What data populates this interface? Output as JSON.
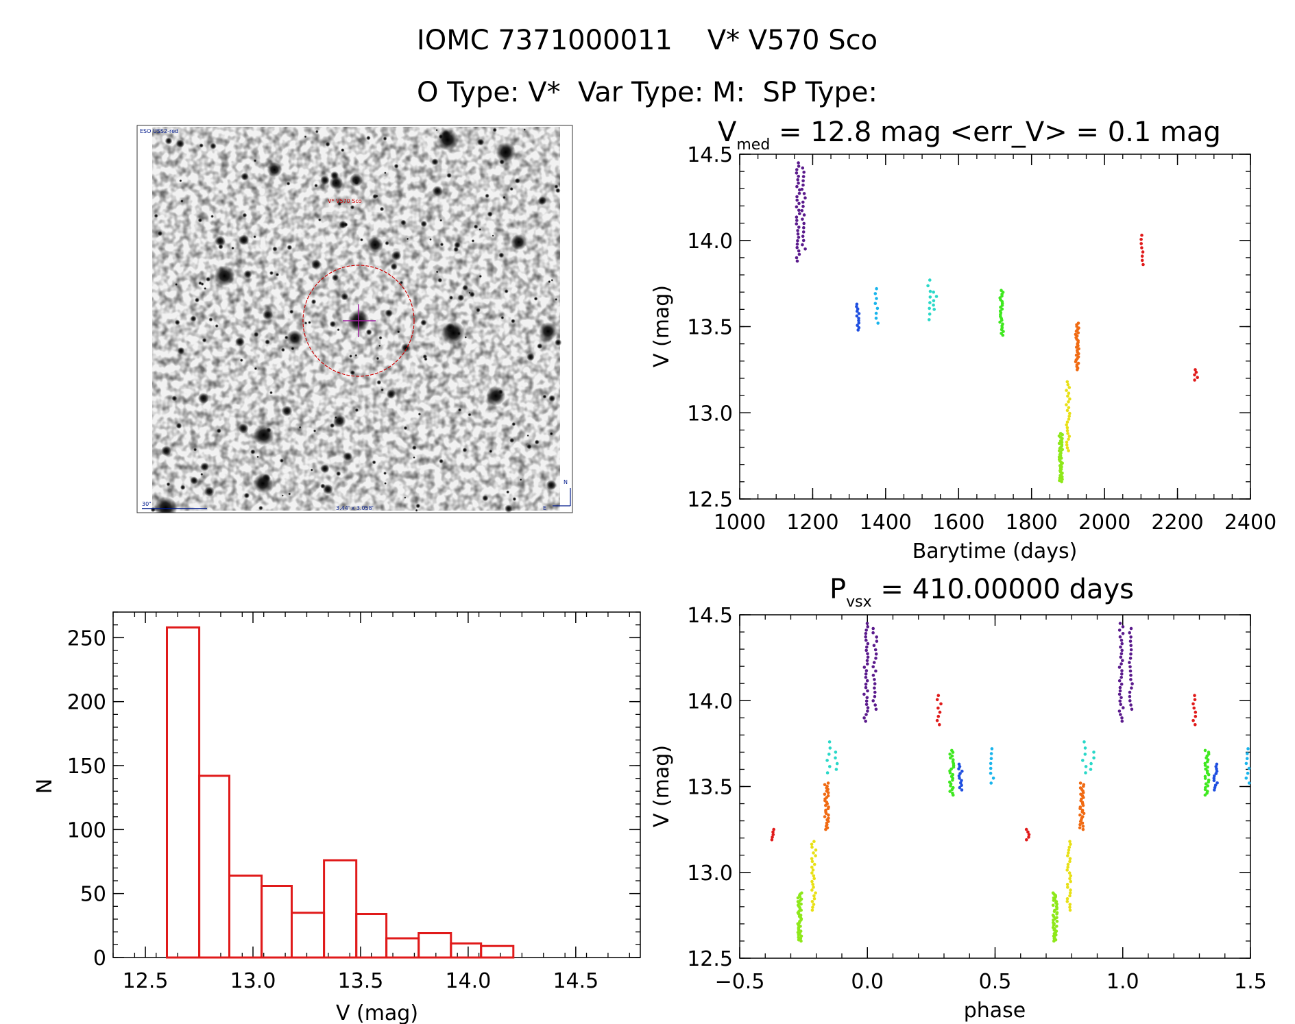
{
  "header": {
    "line1": "IOMC 7371000011    V* V570 Sco",
    "line2": "O Type: V*  Var Type: M:  SP Type:"
  },
  "sky_image": {
    "survey_label": "ESO USS2-red",
    "target_label": "V* V570 Sco",
    "scale_label": "30\"",
    "size_label": "3.44' x 3.058'",
    "north_label": "N",
    "east_label": "E"
  },
  "chart_data": [
    {
      "type": "scatter",
      "title": "V_med = 12.8 mag <err_V> = 0.1 mag",
      "title_parts": {
        "base": "V",
        "sub": "med",
        "rest": " = 12.8 mag <err_V> = 0.1 mag"
      },
      "xlabel": "Barytime (days)",
      "ylabel": "V (mag)",
      "xlim": [
        1000,
        2400
      ],
      "ylim": [
        14.5,
        12.5
      ],
      "y_inverted": true,
      "xticks": [
        "1000",
        "1200",
        "1400",
        "1600",
        "1800",
        "2000",
        "2200",
        "2400"
      ],
      "yticks": [
        "12.5",
        "13.0",
        "13.5",
        "14.0",
        "14.5"
      ],
      "groups": [
        {
          "x": 1160,
          "y": [
            13.88,
            14.45
          ],
          "color": "#5a1a8c",
          "n": 30
        },
        {
          "x": 1175,
          "y": [
            13.95,
            14.42
          ],
          "color": "#5a1a8c",
          "n": 20
        },
        {
          "x": 1325,
          "y": [
            13.48,
            13.63
          ],
          "color": "#1f4fe0",
          "n": 12
        },
        {
          "x": 1375,
          "y": [
            13.52,
            13.72
          ],
          "color": "#19b4ec",
          "n": 8
        },
        {
          "x": 1520,
          "y": [
            13.54,
            13.77
          ],
          "color": "#29d8c8",
          "n": 8
        },
        {
          "x": 1535,
          "y": [
            13.6,
            13.7
          ],
          "color": "#29d8c8",
          "n": 5
        },
        {
          "x": 1718,
          "y": [
            13.45,
            13.71
          ],
          "color": "#3ee81f",
          "n": 25
        },
        {
          "x": 1880,
          "y": [
            12.6,
            12.88
          ],
          "color": "#8ee81a",
          "n": 40
        },
        {
          "x": 1900,
          "y": [
            12.78,
            13.18
          ],
          "color": "#e8e015",
          "n": 25
        },
        {
          "x": 1925,
          "y": [
            13.25,
            13.52
          ],
          "color": "#f06a12",
          "n": 30
        },
        {
          "x": 2105,
          "y": [
            13.86,
            14.03
          ],
          "color": "#e01a1a",
          "n": 8
        },
        {
          "x": 2250,
          "y": [
            13.19,
            13.25
          ],
          "color": "#e01a1a",
          "n": 5
        }
      ]
    },
    {
      "type": "bar",
      "title": "",
      "xlabel": "V (mag)",
      "ylabel": "N",
      "xlim": [
        12.35,
        14.8
      ],
      "ylim": [
        0,
        270
      ],
      "xticks": [
        "12.5",
        "13.0",
        "13.5",
        "14.0",
        "14.5"
      ],
      "yticks": [
        "0",
        "50",
        "100",
        "150",
        "200",
        "250"
      ],
      "bin_edges": [
        12.6,
        12.75,
        12.89,
        13.04,
        13.18,
        13.33,
        13.48,
        13.62,
        13.77,
        13.92,
        14.06,
        14.21,
        14.35
      ],
      "values": [
        258,
        142,
        64,
        56,
        35,
        76,
        34,
        15,
        19,
        11,
        9,
        0
      ],
      "color": "#e01a1a"
    },
    {
      "type": "scatter",
      "title": "P_vsx = 410.00000 days",
      "title_parts": {
        "base": "P",
        "sub": "vsx",
        "rest": " = 410.00000 days"
      },
      "xlabel": "phase",
      "ylabel": "V (mag)",
      "xlim": [
        -0.5,
        1.5
      ],
      "ylim": [
        14.5,
        12.5
      ],
      "y_inverted": true,
      "xticks": [
        "−0.5",
        "0.0",
        "0.5",
        "1.0",
        "1.5"
      ],
      "yticks": [
        "12.5",
        "13.0",
        "13.5",
        "14.0",
        "14.5"
      ],
      "groups": [
        {
          "x": -0.37,
          "y": [
            13.19,
            13.25
          ],
          "color": "#e01a1a",
          "n": 5
        },
        {
          "x": -0.265,
          "y": [
            12.6,
            12.88
          ],
          "color": "#8ee81a",
          "n": 40
        },
        {
          "x": -0.21,
          "y": [
            12.78,
            13.18
          ],
          "color": "#e8e015",
          "n": 25
        },
        {
          "x": -0.16,
          "y": [
            13.25,
            13.52
          ],
          "color": "#f06a12",
          "n": 30
        },
        {
          "x": -0.15,
          "y": [
            13.58,
            13.76
          ],
          "color": "#29d8c8",
          "n": 6
        },
        {
          "x": -0.12,
          "y": [
            13.6,
            13.7
          ],
          "color": "#29d8c8",
          "n": 4
        },
        {
          "x": -0.005,
          "y": [
            13.88,
            14.45
          ],
          "color": "#5a1a8c",
          "n": 30
        },
        {
          "x": 0.03,
          "y": [
            13.95,
            14.42
          ],
          "color": "#5a1a8c",
          "n": 20
        },
        {
          "x": 0.28,
          "y": [
            13.86,
            14.03
          ],
          "color": "#e01a1a",
          "n": 8
        },
        {
          "x": 0.33,
          "y": [
            13.45,
            13.71
          ],
          "color": "#3ee81f",
          "n": 25
        },
        {
          "x": 0.365,
          "y": [
            13.48,
            13.63
          ],
          "color": "#1f4fe0",
          "n": 12
        },
        {
          "x": 0.49,
          "y": [
            13.52,
            13.72
          ],
          "color": "#19b4ec",
          "n": 8
        },
        {
          "x": 0.63,
          "y": [
            13.19,
            13.25
          ],
          "color": "#e01a1a",
          "n": 5
        },
        {
          "x": 0.735,
          "y": [
            12.6,
            12.88
          ],
          "color": "#8ee81a",
          "n": 40
        },
        {
          "x": 0.79,
          "y": [
            12.78,
            13.18
          ],
          "color": "#e8e015",
          "n": 25
        },
        {
          "x": 0.84,
          "y": [
            13.25,
            13.52
          ],
          "color": "#f06a12",
          "n": 30
        },
        {
          "x": 0.85,
          "y": [
            13.58,
            13.76
          ],
          "color": "#29d8c8",
          "n": 6
        },
        {
          "x": 0.88,
          "y": [
            13.6,
            13.7
          ],
          "color": "#29d8c8",
          "n": 4
        },
        {
          "x": 0.995,
          "y": [
            13.88,
            14.45
          ],
          "color": "#5a1a8c",
          "n": 30
        },
        {
          "x": 1.03,
          "y": [
            13.95,
            14.42
          ],
          "color": "#5a1a8c",
          "n": 20
        },
        {
          "x": 1.28,
          "y": [
            13.86,
            14.03
          ],
          "color": "#e01a1a",
          "n": 8
        },
        {
          "x": 1.33,
          "y": [
            13.45,
            13.71
          ],
          "color": "#3ee81f",
          "n": 25
        },
        {
          "x": 1.365,
          "y": [
            13.48,
            13.63
          ],
          "color": "#1f4fe0",
          "n": 12
        },
        {
          "x": 1.49,
          "y": [
            13.52,
            13.72
          ],
          "color": "#19b4ec",
          "n": 8
        }
      ]
    }
  ]
}
